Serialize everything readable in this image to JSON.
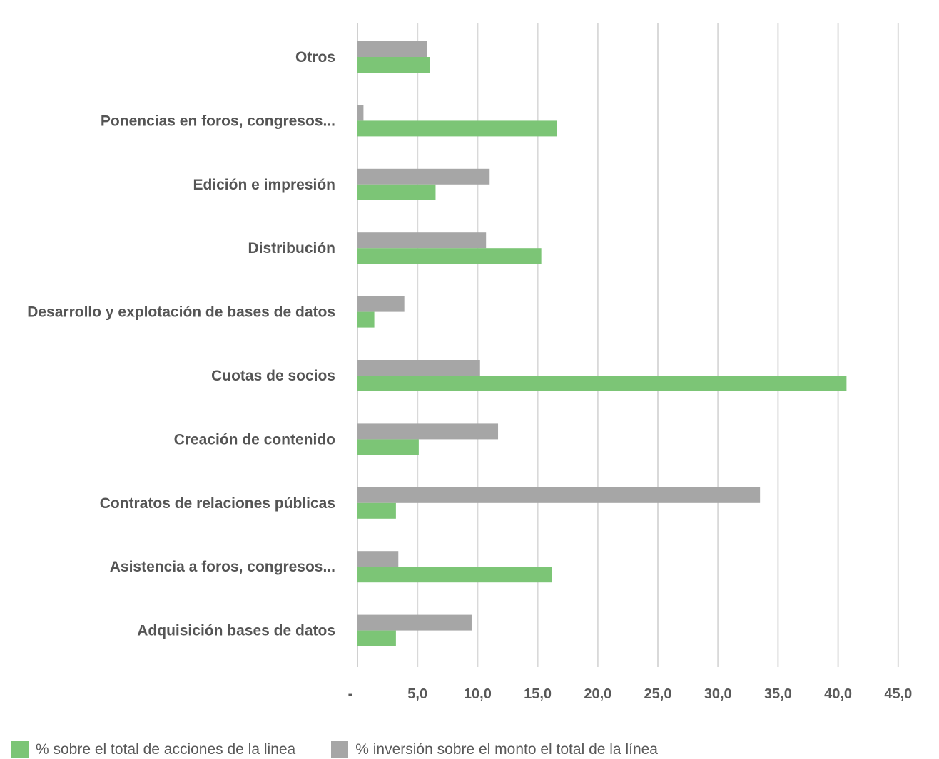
{
  "chart_data": {
    "type": "bar",
    "orientation": "horizontal",
    "categories": [
      "Otros",
      "Ponencias en foros, congresos...",
      "Edición e impresión",
      "Distribución",
      "Desarrollo y explotación de bases de datos",
      "Cuotas de socios",
      "Creación de contenido",
      "Contratos de relaciones públicas",
      "Asistencia a foros, congresos...",
      "Adquisición bases de datos"
    ],
    "series": [
      {
        "name": "% inversión sobre el monto el total de la línea",
        "color": "#a6a6a6",
        "values": [
          5.8,
          0.5,
          11.0,
          10.7,
          3.9,
          10.2,
          11.7,
          33.5,
          3.4,
          9.5
        ]
      },
      {
        "name": "% sobre el total de acciones de la linea",
        "color": "#7cc576",
        "values": [
          6.0,
          16.6,
          6.5,
          15.3,
          1.4,
          40.7,
          5.1,
          3.2,
          16.2,
          3.2
        ]
      }
    ],
    "xlim": [
      0,
      45
    ],
    "xticks": [
      "-",
      "5,0",
      "10,0",
      "15,0",
      "20,0",
      "25,0",
      "30,0",
      "35,0",
      "40,0",
      "45,0"
    ],
    "grid": true,
    "legend_position": "bottom-left"
  }
}
